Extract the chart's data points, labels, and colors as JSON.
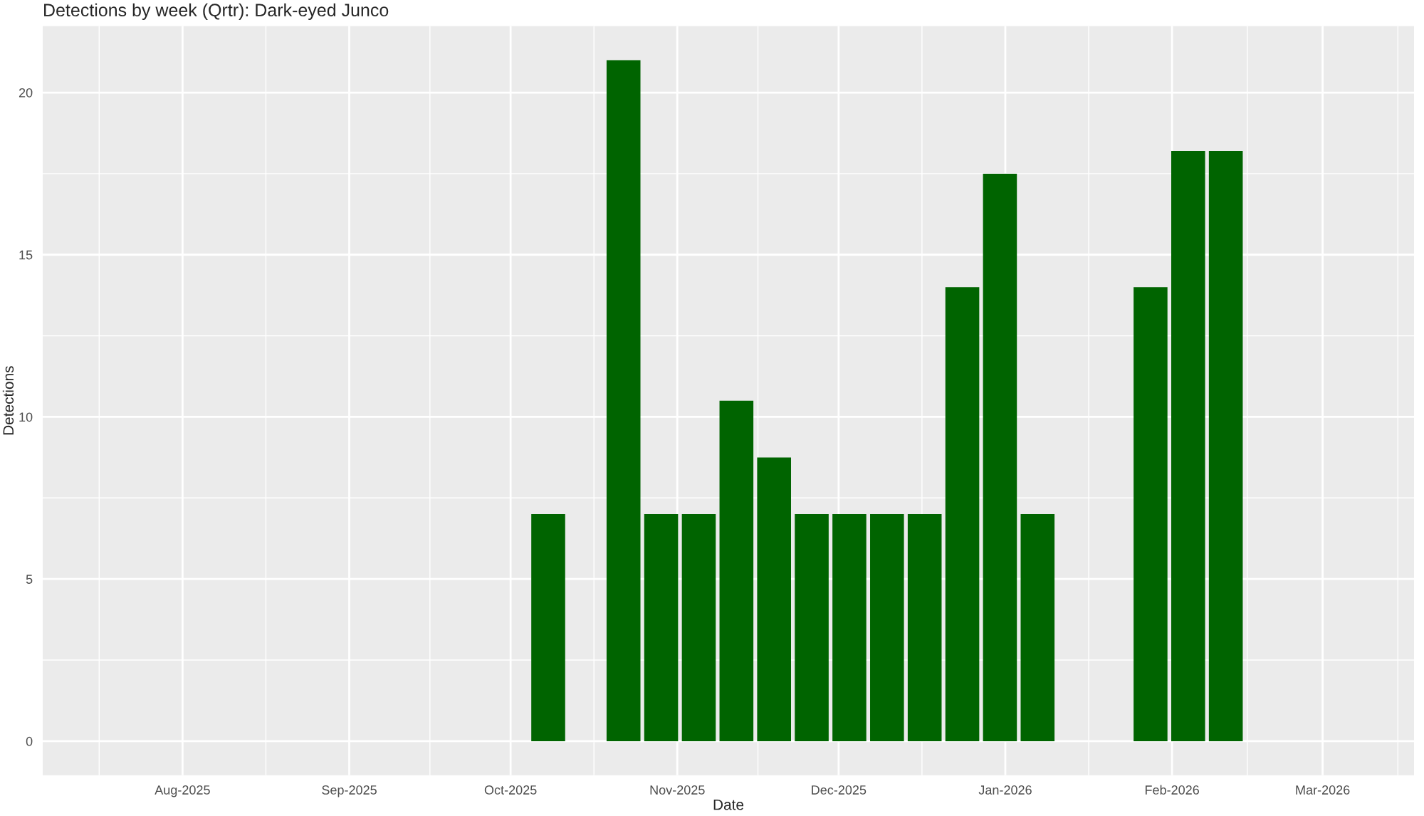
{
  "chart_data": {
    "type": "bar",
    "title": "Detections by week (Qrtr): Dark-eyed Junco",
    "xlabel": "Date",
    "ylabel": "Detections",
    "x": [
      "2025-10-08",
      "2025-10-22",
      "2025-10-29",
      "2025-11-05",
      "2025-11-12",
      "2025-11-19",
      "2025-11-26",
      "2025-12-03",
      "2025-12-10",
      "2025-12-17",
      "2025-12-24",
      "2025-12-31",
      "2026-01-07",
      "2026-01-28",
      "2026-02-04",
      "2026-02-11"
    ],
    "values": [
      7,
      21,
      7,
      7,
      10.5,
      8.75,
      7,
      7,
      7,
      7,
      14,
      17.5,
      7,
      14,
      18.2,
      18.2
    ],
    "color": "#006400",
    "xlim": [
      "2025-07-06",
      "2026-03-18"
    ],
    "xticks": [
      {
        "value": "2025-08-01",
        "label": "Aug-2025"
      },
      {
        "value": "2025-09-01",
        "label": "Sep-2025"
      },
      {
        "value": "2025-10-01",
        "label": "Oct-2025"
      },
      {
        "value": "2025-11-01",
        "label": "Nov-2025"
      },
      {
        "value": "2025-12-01",
        "label": "Dec-2025"
      },
      {
        "value": "2026-01-01",
        "label": "Jan-2026"
      },
      {
        "value": "2026-02-01",
        "label": "Feb-2026"
      },
      {
        "value": "2026-03-01",
        "label": "Mar-2026"
      }
    ],
    "ylim": [
      -1.05,
      22.05
    ],
    "yticks": [
      0,
      5,
      10,
      15,
      20
    ],
    "grid": true
  }
}
